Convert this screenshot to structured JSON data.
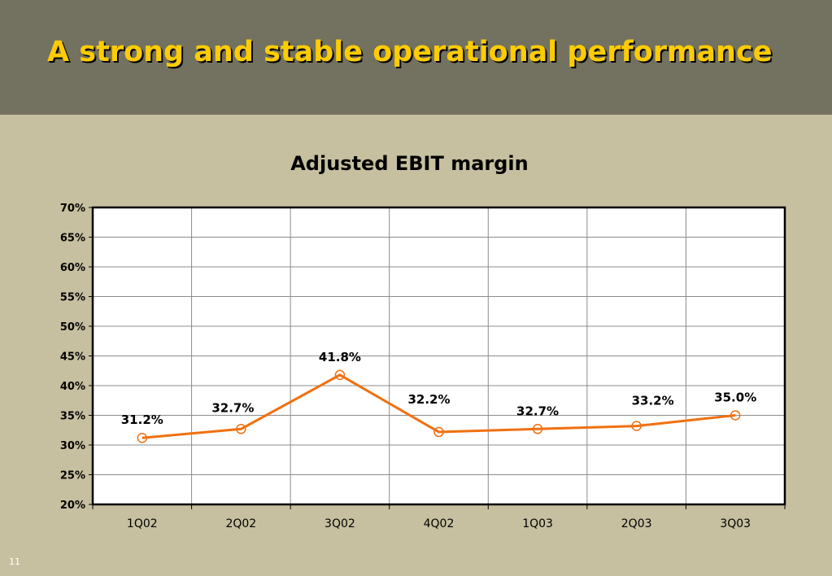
{
  "slide": {
    "title": "A strong and stable operational performance",
    "number": "11"
  },
  "colors": {
    "header_bg": "#737260",
    "slide_bg": "#c6c0a0",
    "title_text": "#ffcc00",
    "series_line": "#f07010",
    "plot_border": "#000000",
    "grid": "#8c8c8c"
  },
  "chart_data": {
    "type": "line",
    "title": "Adjusted EBIT margin",
    "xlabel": "",
    "ylabel": "",
    "categories": [
      "1Q02",
      "2Q02",
      "3Q02",
      "4Q02",
      "1Q03",
      "2Q03",
      "3Q03"
    ],
    "series": [
      {
        "values": [
          31.2,
          32.7,
          41.8,
          32.2,
          32.7,
          33.2,
          35.0
        ],
        "data_labels": [
          "31.2%",
          "32.7%",
          "41.8%",
          "32.2%",
          "32.7%",
          "33.2%",
          "35.0%"
        ]
      }
    ],
    "ylim": [
      20,
      70
    ],
    "ytick_values": [
      20,
      25,
      30,
      35,
      40,
      45,
      50,
      55,
      60,
      65,
      70
    ],
    "ytick_labels": [
      "20%",
      "25%",
      "30%",
      "35%",
      "40%",
      "45%",
      "50%",
      "55%",
      "60%",
      "65%",
      "70%"
    ],
    "grid": true,
    "legend": "none",
    "marker": "hollow-circle"
  }
}
